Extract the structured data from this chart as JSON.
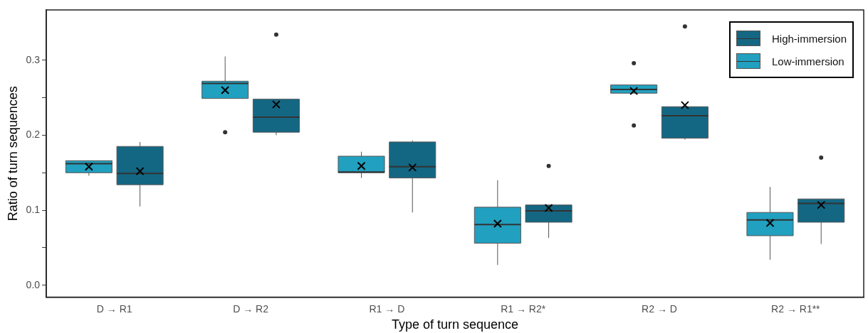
{
  "chart_data": {
    "type": "box",
    "xlabel": "Type of turn sequence",
    "ylabel": "Ratio of turn sequences",
    "categories": [
      "D → R1",
      "D → R2",
      "R1 → D",
      "R1 → R2*",
      "R2 → D",
      "R2 → R1**"
    ],
    "ylim": [
      -0.016,
      0.367
    ],
    "yticks": [
      {
        "value": 0,
        "label": "0.0"
      },
      {
        "value": 0.05,
        "label": null
      },
      {
        "value": 0.1,
        "label": "0.1"
      },
      {
        "value": 0.15,
        "label": null
      },
      {
        "value": 0.2,
        "label": "0.2"
      },
      {
        "value": 0.25,
        "label": null
      },
      {
        "value": 0.3,
        "label": "0.3"
      }
    ],
    "grid": false,
    "legend": "top right",
    "marker": "cross",
    "series": [
      {
        "name": "Low-immersion",
        "color": "#21a0c0",
        "boxes": [
          {
            "low": 0.146,
            "q1": 0.15,
            "median": 0.162,
            "q3": 0.166,
            "high": 0.166,
            "mean": 0.158
          },
          {
            "low": 0.249,
            "q1": 0.249,
            "median": 0.269,
            "q3": 0.272,
            "high": 0.305,
            "mean": 0.26,
            "outliers": [
              0.204
            ]
          },
          {
            "low": 0.143,
            "q1": 0.15,
            "median": 0.151,
            "q3": 0.172,
            "high": 0.178,
            "mean": 0.159
          },
          {
            "low": 0.027,
            "q1": 0.056,
            "median": 0.081,
            "q3": 0.104,
            "high": 0.14,
            "mean": 0.082
          },
          {
            "low": 0.256,
            "q1": 0.256,
            "median": 0.261,
            "q3": 0.267,
            "high": 0.267,
            "mean": 0.259,
            "outliers": [
              0.296,
              0.213
            ]
          },
          {
            "low": 0.034,
            "q1": 0.066,
            "median": 0.087,
            "q3": 0.097,
            "high": 0.131,
            "mean": 0.083
          }
        ]
      },
      {
        "name": "High-immersion",
        "color": "#136783",
        "boxes": [
          {
            "low": 0.105,
            "q1": 0.134,
            "median": 0.149,
            "q3": 0.185,
            "high": 0.191,
            "mean": 0.152
          },
          {
            "low": 0.2,
            "q1": 0.204,
            "median": 0.224,
            "q3": 0.248,
            "high": 0.248,
            "mean": 0.241,
            "outliers": [
              0.334
            ]
          },
          {
            "low": 0.097,
            "q1": 0.143,
            "median": 0.158,
            "q3": 0.191,
            "high": 0.193,
            "mean": 0.157
          },
          {
            "low": 0.063,
            "q1": 0.084,
            "median": 0.099,
            "q3": 0.107,
            "high": 0.107,
            "mean": 0.103,
            "outliers": [
              0.159
            ]
          },
          {
            "low": 0.194,
            "q1": 0.196,
            "median": 0.226,
            "q3": 0.238,
            "high": 0.238,
            "mean": 0.24,
            "outliers": [
              0.345
            ]
          },
          {
            "low": 0.055,
            "q1": 0.084,
            "median": 0.109,
            "q3": 0.115,
            "high": 0.115,
            "mean": 0.107,
            "outliers": [
              0.17
            ]
          }
        ]
      }
    ]
  }
}
